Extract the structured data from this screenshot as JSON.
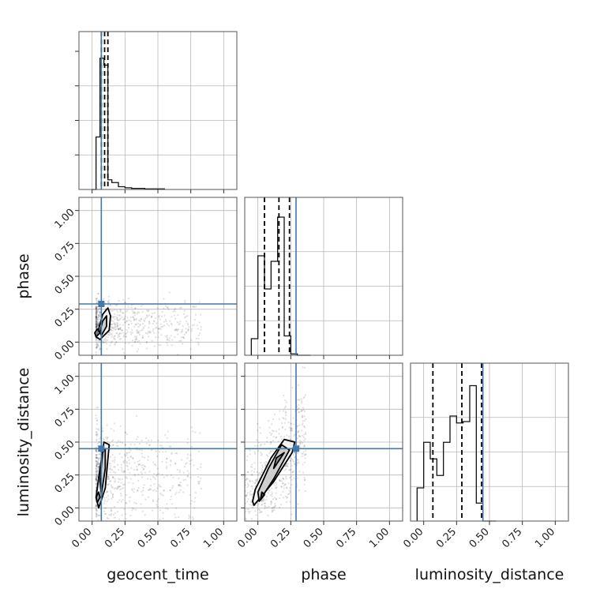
{
  "chart_data": {
    "type": "corner",
    "parameters": [
      "geocent_time",
      "phase",
      "luminosity_distance"
    ],
    "ticks": [
      0.0,
      0.25,
      0.5,
      0.75,
      1.0
    ],
    "tick_labels": [
      "0.00",
      "0.25",
      "0.50",
      "0.75",
      "1.00"
    ],
    "grid": true,
    "truth_color": "#4477aa",
    "truths": {
      "geocent_time": 0.07,
      "phase": 0.29,
      "luminosity_distance": 0.45
    },
    "quantiles": {
      "geocent_time": [
        0.07,
        0.095,
        0.12
      ],
      "phase": [
        0.05,
        0.16,
        0.24
      ],
      "luminosity_distance": [
        0.07,
        0.29,
        0.44
      ]
    },
    "histograms": {
      "geocent_time": {
        "bin_edges": [
          0.0,
          0.03,
          0.06,
          0.09,
          0.12,
          0.15,
          0.2,
          0.25,
          0.3,
          0.4,
          0.55
        ],
        "heights": [
          0.0,
          0.38,
          0.95,
          0.9,
          0.07,
          0.05,
          0.02,
          0.012,
          0.008,
          0.004
        ]
      },
      "phase": {
        "bin_edges": [
          -0.05,
          0.0,
          0.05,
          0.1,
          0.15,
          0.2,
          0.25,
          0.3,
          0.35,
          0.4
        ],
        "heights": [
          0.12,
          0.72,
          0.48,
          0.68,
          1.0,
          0.14,
          0.01,
          0.0,
          0.0
        ]
      },
      "luminosity_distance": {
        "bin_edges": [
          -0.05,
          0.0,
          0.05,
          0.1,
          0.15,
          0.2,
          0.25,
          0.3,
          0.35,
          0.4,
          0.45,
          0.5,
          0.55
        ],
        "heights": [
          0.24,
          0.57,
          0.45,
          0.33,
          0.57,
          0.76,
          0.71,
          0.72,
          0.98,
          0.13,
          0.0,
          0.0
        ]
      }
    },
    "contours": {
      "phase_vs_geocent_time": [
        [
          [
            0.06,
            0.02
          ],
          [
            0.13,
            0.09
          ],
          [
            0.14,
            0.2
          ],
          [
            0.12,
            0.26
          ],
          [
            0.08,
            0.21
          ],
          [
            0.05,
            0.1
          ],
          [
            0.03,
            0.04
          ]
        ],
        [
          [
            0.07,
            0.05
          ],
          [
            0.11,
            0.12
          ],
          [
            0.11,
            0.2
          ],
          [
            0.08,
            0.16
          ],
          [
            0.06,
            0.08
          ]
        ],
        [
          [
            0.03,
            0.04
          ],
          [
            0.06,
            0.07
          ],
          [
            0.04,
            0.1
          ],
          [
            0.02,
            0.07
          ]
        ]
      ],
      "luminosity_distance_vs_geocent_time": [
        [
          [
            0.05,
            0.0
          ],
          [
            0.1,
            0.15
          ],
          [
            0.13,
            0.48
          ],
          [
            0.09,
            0.5
          ],
          [
            0.06,
            0.3
          ],
          [
            0.03,
            0.08
          ]
        ],
        [
          [
            0.07,
            0.1
          ],
          [
            0.1,
            0.3
          ],
          [
            0.1,
            0.45
          ],
          [
            0.08,
            0.42
          ],
          [
            0.06,
            0.2
          ]
        ],
        [
          [
            0.04,
            0.04
          ],
          [
            0.06,
            0.08
          ],
          [
            0.05,
            0.12
          ],
          [
            0.03,
            0.08
          ]
        ]
      ],
      "luminosity_distance_vs_phase": [
        [
          [
            -0.03,
            0.02
          ],
          [
            0.12,
            0.2
          ],
          [
            0.26,
            0.42
          ],
          [
            0.28,
            0.5
          ],
          [
            0.2,
            0.52
          ],
          [
            0.1,
            0.38
          ],
          [
            -0.02,
            0.14
          ],
          [
            -0.04,
            0.05
          ]
        ],
        [
          [
            0.01,
            0.05
          ],
          [
            0.12,
            0.22
          ],
          [
            0.24,
            0.44
          ],
          [
            0.18,
            0.48
          ],
          [
            0.08,
            0.3
          ],
          [
            0.0,
            0.12
          ]
        ],
        [
          [
            0.12,
            0.3
          ],
          [
            0.2,
            0.42
          ],
          [
            0.14,
            0.38
          ]
        ],
        [
          [
            0.02,
            0.06
          ],
          [
            0.05,
            0.1
          ],
          [
            0.03,
            0.12
          ]
        ]
      ]
    }
  }
}
